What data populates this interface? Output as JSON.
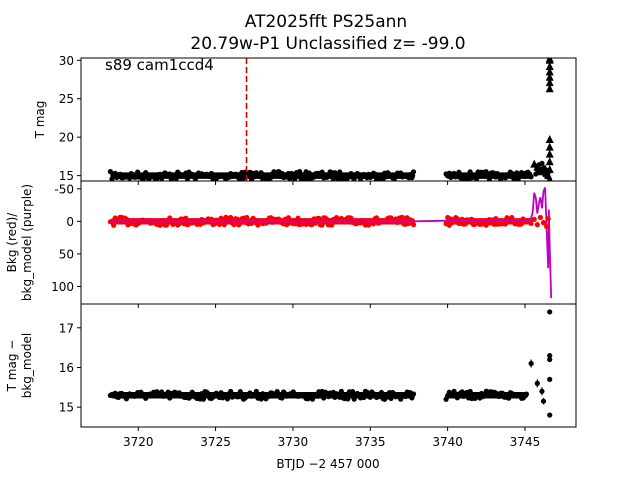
{
  "chart_data": {
    "type": "scatter",
    "title_line1": "AT2025fft  PS25ann",
    "title_line2": "20.79w-P1 Unclassified z= -99.0",
    "xlabel": "BTJD −2 457 000",
    "xlim": [
      3716.3,
      3748.3
    ],
    "xticks": [
      3720,
      3725,
      3730,
      3735,
      3740,
      3745
    ],
    "panels": [
      {
        "id": "tmag",
        "ylabel": "T mag",
        "ylim": [
          30.3,
          14.3
        ],
        "yticks": [
          15,
          20,
          25,
          30
        ],
        "annotation": "s89 cam1ccd4",
        "vline_x": 3727.0,
        "vline_color": "#dd0000",
        "segments": [
          {
            "x0": 3718.2,
            "x1": 3737.9,
            "y": 15.0,
            "color": "#000000"
          },
          {
            "x0": 3739.9,
            "x1": 3745.5,
            "y": 15.0,
            "color": "#000000"
          }
        ],
        "points": [
          [
            3745.7,
            15.2
          ],
          [
            3745.8,
            15.8
          ],
          [
            3745.9,
            16.4
          ],
          [
            3746.0,
            15.5
          ],
          [
            3746.1,
            16.6
          ],
          [
            3746.2,
            16.0
          ],
          [
            3746.3,
            15.1
          ],
          [
            3746.4,
            15.7
          ],
          [
            3746.5,
            15.4
          ]
        ],
        "triangles": [
          [
            3745.6,
            16.5
          ],
          [
            3745.8,
            16.1
          ],
          [
            3746.0,
            15.6
          ],
          [
            3746.1,
            15.5
          ],
          [
            3746.3,
            15.9
          ],
          [
            3746.4,
            15.3
          ],
          [
            3746.5,
            15.0
          ],
          [
            3746.6,
            14.5
          ],
          [
            3746.6,
            15.8
          ],
          [
            3746.6,
            16.8
          ],
          [
            3746.6,
            17.8
          ],
          [
            3746.6,
            18.7
          ],
          [
            3746.6,
            19.7
          ],
          [
            3746.6,
            26.3
          ],
          [
            3746.6,
            27.1
          ],
          [
            3746.6,
            27.8
          ],
          [
            3746.6,
            28.5
          ],
          [
            3746.6,
            29.2
          ],
          [
            3746.6,
            30.0
          ],
          [
            3746.6,
            30.2
          ]
        ]
      },
      {
        "id": "bkg",
        "ylabel_line1": "Bkg (red)/",
        "ylabel_line2": "bkg_model (purple)",
        "ylim": [
          -62,
          127
        ],
        "yticks": [
          -50,
          0,
          50,
          100
        ],
        "segments": [
          {
            "x0": 3718.2,
            "x1": 3737.9,
            "y": 0,
            "color": "#ff0000"
          },
          {
            "x0": 3739.9,
            "x1": 3745.5,
            "y": 0,
            "color": "#ff0000"
          }
        ],
        "points": [
          [
            3745.6,
            -3
          ],
          [
            3745.8,
            5
          ],
          [
            3746.0,
            -6
          ],
          [
            3746.2,
            2
          ],
          [
            3746.4,
            8
          ],
          [
            3746.5,
            -4
          ]
        ],
        "model": [
          [
            3718.2,
            0
          ],
          [
            3737.9,
            0
          ],
          [
            3740.0,
            -1
          ],
          [
            3745.3,
            -1
          ],
          [
            3745.4,
            -5
          ],
          [
            3745.5,
            -14
          ],
          [
            3745.6,
            -44
          ],
          [
            3745.7,
            -36
          ],
          [
            3745.8,
            -12
          ],
          [
            3745.9,
            -28
          ],
          [
            3746.0,
            -37
          ],
          [
            3746.1,
            -20
          ],
          [
            3746.2,
            -46
          ],
          [
            3746.3,
            -52
          ],
          [
            3746.4,
            10
          ],
          [
            3746.5,
            72
          ],
          [
            3746.55,
            -18
          ],
          [
            3746.6,
            40
          ],
          [
            3746.7,
            118
          ]
        ]
      },
      {
        "id": "diff",
        "ylabel_line1": "T mag −",
        "ylabel_line2": "bkg_model",
        "ylim": [
          17.6,
          14.5
        ],
        "yticks": [
          15,
          16,
          17
        ],
        "segments": [
          {
            "x0": 3718.2,
            "x1": 3737.9,
            "y": 15.3,
            "color": "#000000"
          },
          {
            "x0": 3739.9,
            "x1": 3745.2,
            "y": 15.3,
            "color": "#000000"
          }
        ],
        "errpoints": [
          [
            3745.4,
            16.1,
            0.1
          ],
          [
            3745.8,
            15.6,
            0.1
          ],
          [
            3746.1,
            15.4,
            0.1
          ],
          [
            3746.2,
            15.15,
            0.08
          ]
        ],
        "points": [
          [
            3746.6,
            14.8
          ],
          [
            3746.6,
            15.7
          ],
          [
            3746.6,
            16.2
          ],
          [
            3746.6,
            16.3
          ],
          [
            3746.6,
            17.4
          ]
        ]
      }
    ]
  }
}
